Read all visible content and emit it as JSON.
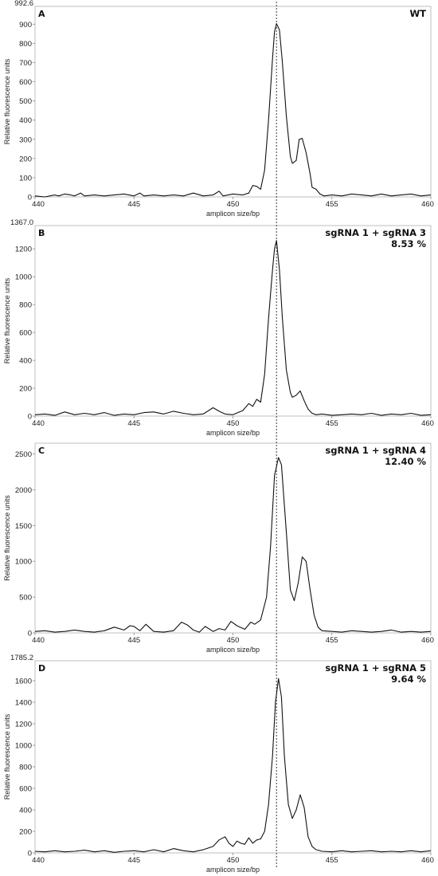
{
  "chart_data": [
    {
      "type": "line",
      "panel": "A",
      "title": "WT",
      "subtitle": "",
      "ymax_label": "992.6",
      "xlabel": "amplicon size/bp",
      "ylabel": "Relative fluorescence units",
      "xlim": [
        440,
        460
      ],
      "ylim": [
        0,
        992.6
      ],
      "xticks": [
        440,
        445,
        450,
        455,
        460
      ],
      "yticks": [
        0,
        100,
        200,
        300,
        400,
        500,
        600,
        700,
        800,
        900
      ],
      "x": [
        440.0,
        440.5,
        441.0,
        441.2,
        441.5,
        441.8,
        442.0,
        442.3,
        442.5,
        443.0,
        443.5,
        444.0,
        444.5,
        445.0,
        445.3,
        445.5,
        446.0,
        446.5,
        447.0,
        447.5,
        448.0,
        448.5,
        449.0,
        449.3,
        449.5,
        450.0,
        450.5,
        450.8,
        451.0,
        451.2,
        451.4,
        451.6,
        451.8,
        452.0,
        452.1,
        452.2,
        452.35,
        452.5,
        452.7,
        452.9,
        453.0,
        453.2,
        453.35,
        453.5,
        453.7,
        453.9,
        454.0,
        454.2,
        454.4,
        454.6,
        455.0,
        455.5,
        456.0,
        456.5,
        457.0,
        457.5,
        458.0,
        458.5,
        459.0,
        459.5,
        460.0
      ],
      "values": [
        5,
        0,
        10,
        5,
        15,
        10,
        5,
        20,
        5,
        10,
        5,
        10,
        15,
        5,
        20,
        5,
        10,
        5,
        10,
        5,
        20,
        5,
        10,
        30,
        5,
        15,
        10,
        20,
        60,
        55,
        40,
        140,
        400,
        720,
        860,
        903,
        870,
        700,
        420,
        210,
        175,
        190,
        300,
        305,
        230,
        120,
        50,
        40,
        15,
        5,
        10,
        5,
        15,
        10,
        5,
        15,
        5,
        10,
        15,
        5,
        10
      ]
    },
    {
      "type": "line",
      "panel": "B",
      "title": "sgRNA 1 + sgRNA 3",
      "subtitle": "8.53 %",
      "ymax_label": "1367.0",
      "xlabel": "amplicon size/bp",
      "ylabel": "Relative fluorescence units",
      "xlim": [
        440,
        460
      ],
      "ylim": [
        0,
        1367.0
      ],
      "xticks": [
        440,
        445,
        450,
        455,
        460
      ],
      "yticks": [
        0,
        200,
        400,
        600,
        800,
        1000,
        1200
      ],
      "x": [
        440.0,
        440.5,
        441.0,
        441.5,
        442.0,
        442.5,
        443.0,
        443.5,
        444.0,
        444.5,
        445.0,
        445.5,
        446.0,
        446.5,
        447.0,
        447.5,
        448.0,
        448.5,
        449.0,
        449.3,
        449.6,
        450.0,
        450.5,
        450.8,
        451.0,
        451.2,
        451.4,
        451.6,
        451.8,
        452.0,
        452.1,
        452.2,
        452.35,
        452.5,
        452.7,
        452.9,
        453.0,
        453.2,
        453.4,
        453.6,
        453.8,
        454.0,
        454.2,
        454.5,
        455.0,
        455.5,
        456.0,
        456.5,
        457.0,
        457.5,
        458.0,
        458.5,
        459.0,
        459.5,
        460.0
      ],
      "values": [
        10,
        15,
        5,
        30,
        10,
        20,
        10,
        25,
        5,
        15,
        10,
        25,
        30,
        15,
        35,
        20,
        10,
        15,
        60,
        35,
        15,
        10,
        40,
        90,
        70,
        120,
        100,
        300,
        700,
        1050,
        1200,
        1260,
        1050,
        700,
        330,
        170,
        135,
        150,
        180,
        110,
        50,
        20,
        10,
        15,
        5,
        10,
        15,
        10,
        20,
        5,
        15,
        10,
        20,
        5,
        10
      ]
    },
    {
      "type": "line",
      "panel": "C",
      "title": "sgRNA 1 + sgRNA 4",
      "subtitle": "12.40 %",
      "ymax_label": "",
      "xlabel": "amplicon size/bp",
      "ylabel": "Relative fluorescence units",
      "xlim": [
        440,
        460
      ],
      "ylim": [
        0,
        2650
      ],
      "xticks": [
        440,
        445,
        450,
        455,
        460
      ],
      "yticks": [
        0,
        500,
        1000,
        1500,
        2000,
        2500
      ],
      "x": [
        440.0,
        440.5,
        441.0,
        441.5,
        442.0,
        442.5,
        443.0,
        443.5,
        444.0,
        444.5,
        444.8,
        445.0,
        445.3,
        445.6,
        446.0,
        446.5,
        447.0,
        447.4,
        447.7,
        448.0,
        448.3,
        448.6,
        449.0,
        449.3,
        449.6,
        449.9,
        450.2,
        450.6,
        450.9,
        451.1,
        451.4,
        451.7,
        451.9,
        452.1,
        452.3,
        452.45,
        452.7,
        452.9,
        453.1,
        453.3,
        453.5,
        453.7,
        453.9,
        454.1,
        454.3,
        454.5,
        455.0,
        455.5,
        456.0,
        456.5,
        457.0,
        457.5,
        458.0,
        458.5,
        459.0,
        459.5,
        460.0
      ],
      "values": [
        20,
        30,
        10,
        20,
        40,
        20,
        10,
        30,
        80,
        40,
        100,
        90,
        30,
        120,
        20,
        10,
        30,
        150,
        110,
        40,
        10,
        90,
        20,
        60,
        40,
        160,
        100,
        50,
        150,
        120,
        180,
        500,
        1200,
        2200,
        2450,
        2350,
        1400,
        600,
        450,
        700,
        1060,
        1000,
        600,
        250,
        80,
        30,
        20,
        10,
        30,
        20,
        10,
        20,
        40,
        10,
        20,
        10,
        20
      ]
    },
    {
      "type": "line",
      "panel": "D",
      "title": "sgRNA 1 + sgRNA 5",
      "subtitle": "9.64 %",
      "ymax_label": "1785.2",
      "xlabel": "amplicon size/bp",
      "ylabel": "Relative fluorescence units",
      "xlim": [
        440,
        460
      ],
      "ylim": [
        0,
        1785.2
      ],
      "xticks": [
        440,
        445,
        450,
        455,
        460
      ],
      "yticks": [
        0,
        200,
        400,
        600,
        800,
        1000,
        1200,
        1400,
        1600
      ],
      "x": [
        440.0,
        440.5,
        441.0,
        441.5,
        442.0,
        442.5,
        443.0,
        443.5,
        444.0,
        444.5,
        445.0,
        445.5,
        446.0,
        446.5,
        447.0,
        447.5,
        448.0,
        448.5,
        449.0,
        449.3,
        449.6,
        449.8,
        450.0,
        450.2,
        450.4,
        450.6,
        450.8,
        451.0,
        451.2,
        451.4,
        451.6,
        451.8,
        452.0,
        452.15,
        452.3,
        452.45,
        452.6,
        452.8,
        453.0,
        453.2,
        453.4,
        453.6,
        453.8,
        454.0,
        454.2,
        454.5,
        455.0,
        455.5,
        456.0,
        456.5,
        457.0,
        457.5,
        458.0,
        458.5,
        459.0,
        459.5,
        460.0
      ],
      "values": [
        15,
        10,
        20,
        10,
        15,
        25,
        10,
        20,
        5,
        15,
        20,
        10,
        30,
        10,
        40,
        20,
        10,
        30,
        60,
        120,
        150,
        90,
        60,
        110,
        90,
        80,
        140,
        90,
        120,
        130,
        200,
        450,
        900,
        1400,
        1620,
        1450,
        900,
        450,
        320,
        400,
        540,
        420,
        150,
        60,
        30,
        15,
        10,
        20,
        10,
        15,
        20,
        10,
        15,
        10,
        20,
        10,
        20
      ]
    }
  ]
}
